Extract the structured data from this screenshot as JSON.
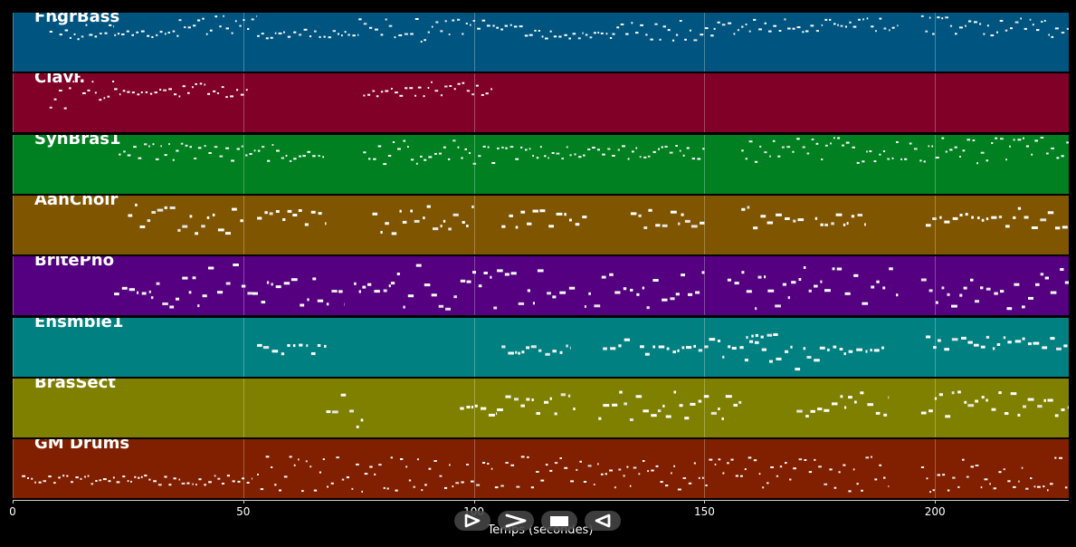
{
  "chart_data": {
    "type": "piano-roll",
    "xlabel": "Temps (secondes)",
    "xlim": [
      0,
      229
    ],
    "xticks": [
      0,
      50,
      100,
      150,
      200
    ],
    "grid": true,
    "tracks": [
      {
        "name": "FngrBass",
        "color": "#005580",
        "note_glyph": "dash",
        "passages": [
          [
            8,
            22,
            0.25,
            0.22
          ],
          [
            22,
            36,
            0.35,
            0.05
          ],
          [
            36,
            53,
            0.18,
            0.18
          ],
          [
            53,
            75,
            0.35,
            0.08
          ],
          [
            75,
            90,
            0.28,
            0.2
          ],
          [
            90,
            112,
            0.25,
            0.15
          ],
          [
            112,
            130,
            0.35,
            0.08
          ],
          [
            130,
            152,
            0.3,
            0.18
          ],
          [
            152,
            158,
            0.18,
            0.2
          ],
          [
            158,
            192,
            0.2,
            0.12
          ],
          [
            197,
            229,
            0.22,
            0.18
          ]
        ]
      },
      {
        "name": "Clavi.",
        "color": "#800028",
        "note_glyph": "dash",
        "passages": [
          [
            8,
            22,
            0.3,
            0.3
          ],
          [
            22,
            36,
            0.3,
            0.05
          ],
          [
            36,
            51,
            0.28,
            0.12
          ],
          [
            76,
            90,
            0.3,
            0.08
          ],
          [
            90,
            104,
            0.25,
            0.12
          ]
        ]
      },
      {
        "name": "SynBras1",
        "color": "#008020",
        "note_glyph": "dash",
        "passages": [
          [
            23,
            68,
            0.28,
            0.15
          ],
          [
            76,
            105,
            0.28,
            0.2
          ],
          [
            105,
            150,
            0.28,
            0.12
          ],
          [
            158,
            229,
            0.25,
            0.22
          ]
        ]
      },
      {
        "name": "AahChoir",
        "color": "#805500",
        "note_glyph": "block",
        "passages": [
          [
            25,
            50,
            0.38,
            0.25
          ],
          [
            53,
            68,
            0.38,
            0.15
          ],
          [
            78,
            100,
            0.38,
            0.25
          ],
          [
            106,
            125,
            0.38,
            0.15
          ],
          [
            134,
            150,
            0.38,
            0.18
          ],
          [
            158,
            172,
            0.36,
            0.22
          ],
          [
            174,
            185,
            0.38,
            0.1
          ],
          [
            198,
            229,
            0.35,
            0.18
          ]
        ]
      },
      {
        "name": "BritePno",
        "color": "#550080",
        "note_glyph": "block",
        "passages": [
          [
            22,
            30,
            0.52,
            0.1
          ],
          [
            30,
            52,
            0.48,
            0.38
          ],
          [
            52,
            72,
            0.52,
            0.3
          ],
          [
            74,
            82,
            0.52,
            0.15
          ],
          [
            82,
            105,
            0.5,
            0.38
          ],
          [
            105,
            122,
            0.5,
            0.3
          ],
          [
            124,
            150,
            0.5,
            0.35
          ],
          [
            155,
            192,
            0.5,
            0.38
          ],
          [
            197,
            229,
            0.5,
            0.38
          ]
        ]
      },
      {
        "name": "Ensmble1",
        "color": "#008080",
        "note_glyph": "block",
        "passages": [
          [
            53,
            68,
            0.52,
            0.08
          ],
          [
            106,
            121,
            0.52,
            0.08
          ],
          [
            128,
            134,
            0.4,
            0.12
          ],
          [
            136,
            151,
            0.52,
            0.08
          ],
          [
            151,
            175,
            0.58,
            0.3
          ],
          [
            159,
            166,
            0.28,
            0.03
          ],
          [
            175,
            189,
            0.52,
            0.08
          ],
          [
            198,
            229,
            0.4,
            0.12
          ]
        ]
      },
      {
        "name": "BrasSect",
        "color": "#808000",
        "note_glyph": "block",
        "passages": [
          [
            68,
            76,
            0.5,
            0.3
          ],
          [
            97,
            105,
            0.52,
            0.08
          ],
          [
            105,
            122,
            0.42,
            0.2
          ],
          [
            127,
            158,
            0.42,
            0.28
          ],
          [
            170,
            176,
            0.52,
            0.1
          ],
          [
            176,
            190,
            0.42,
            0.22
          ],
          [
            197,
            229,
            0.42,
            0.22
          ]
        ]
      },
      {
        "name": "GM Drums",
        "color": "#802000",
        "note_glyph": "dash",
        "passages": [
          [
            2,
            52,
            0.68,
            0.08
          ],
          [
            53,
            190,
            0.58,
            0.3
          ],
          [
            197,
            229,
            0.58,
            0.3
          ]
        ]
      }
    ]
  },
  "playback": {
    "controls": [
      {
        "id": "play",
        "icon": "play-outline-icon"
      },
      {
        "id": "fast-forward",
        "icon": "fast-forward-icon"
      },
      {
        "id": "stop",
        "icon": "stop-icon"
      },
      {
        "id": "rewind",
        "icon": "rewind-icon"
      }
    ]
  }
}
